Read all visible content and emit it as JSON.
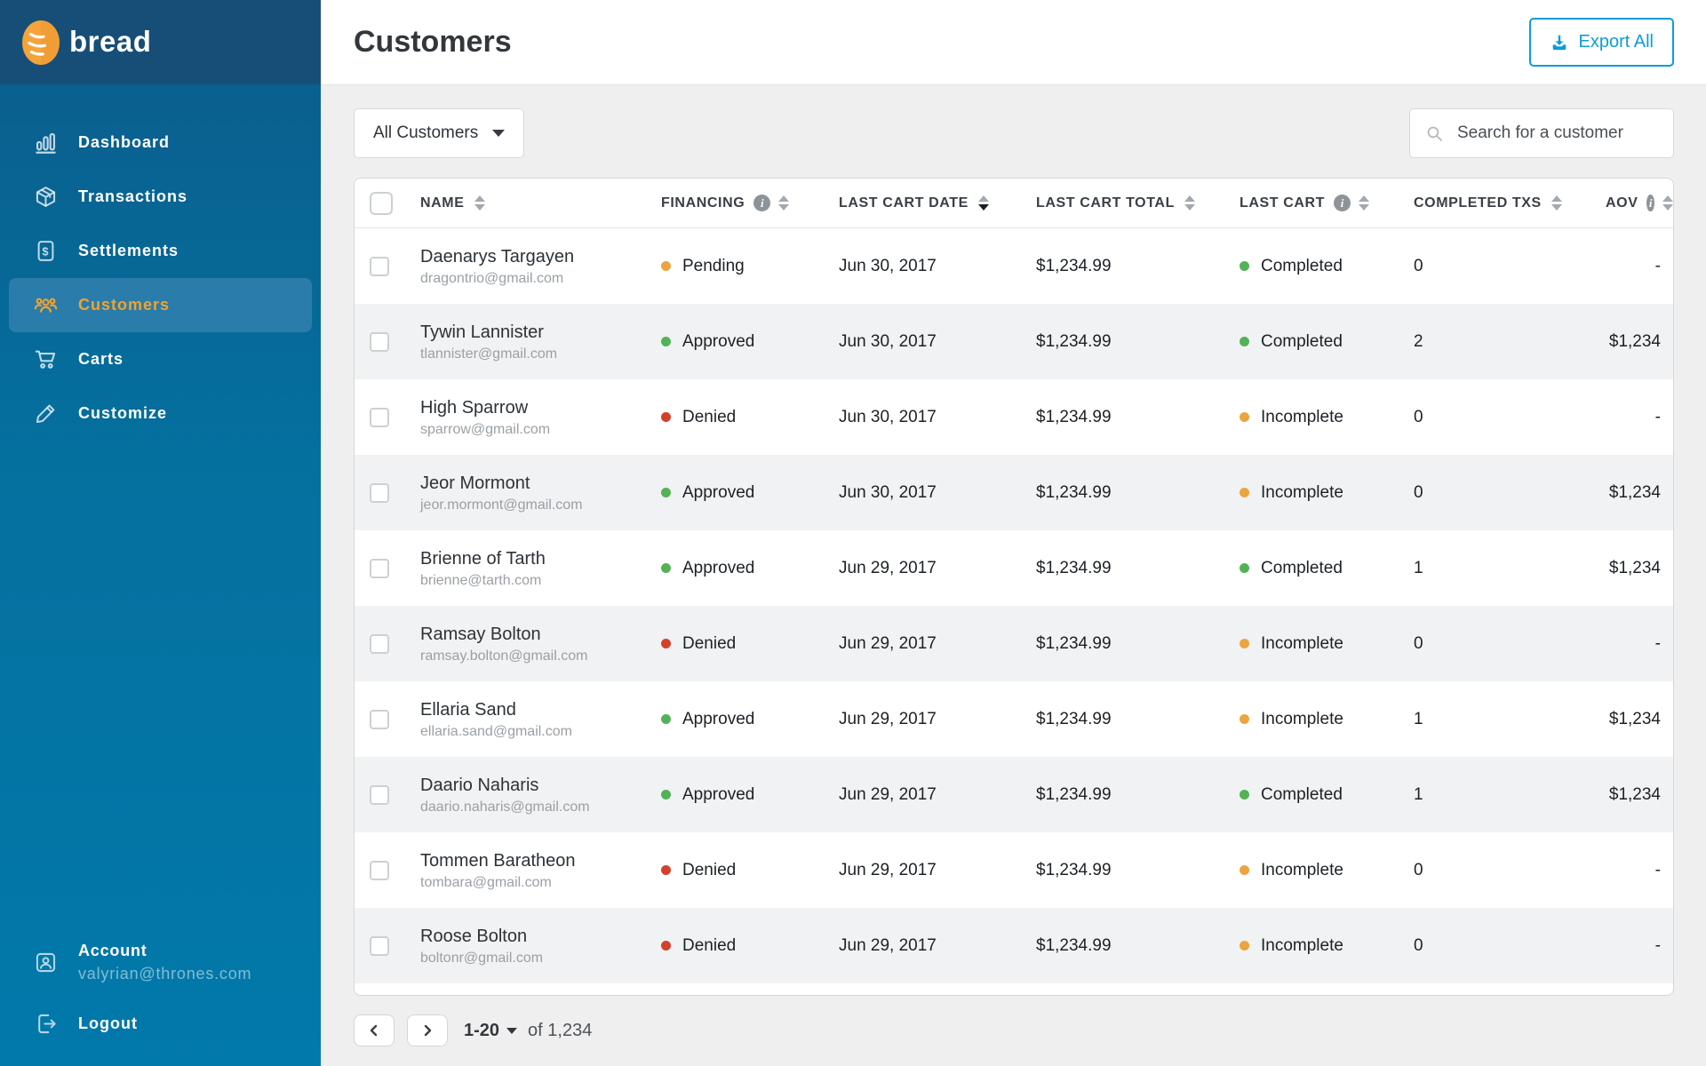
{
  "brand": {
    "name": "bread"
  },
  "sidebar": {
    "items": [
      {
        "id": "dashboard",
        "label": "Dashboard",
        "icon": "dashboard",
        "active": false
      },
      {
        "id": "transactions",
        "label": "Transactions",
        "icon": "transactions",
        "active": false
      },
      {
        "id": "settlements",
        "label": "Settlements",
        "icon": "settlements",
        "active": false
      },
      {
        "id": "customers",
        "label": "Customers",
        "icon": "customers",
        "active": true
      },
      {
        "id": "carts",
        "label": "Carts",
        "icon": "carts",
        "active": false
      },
      {
        "id": "customize",
        "label": "Customize",
        "icon": "customize",
        "active": false
      }
    ],
    "account": {
      "label": "Account",
      "email": "valyrian@thrones.com"
    },
    "logout_label": "Logout"
  },
  "header": {
    "title": "Customers",
    "export_label": "Export All"
  },
  "toolbar": {
    "filter_value": "All Customers",
    "search_placeholder": "Search for a customer"
  },
  "table": {
    "columns": [
      {
        "id": "name",
        "label": "NAME",
        "info": false,
        "sort": "none"
      },
      {
        "id": "financing",
        "label": "FINANCING",
        "info": true,
        "sort": "none"
      },
      {
        "id": "last-cart-date",
        "label": "LAST CART DATE",
        "info": false,
        "sort": "desc"
      },
      {
        "id": "last-cart-total",
        "label": "LAST CART TOTAL",
        "info": false,
        "sort": "none"
      },
      {
        "id": "last-cart",
        "label": "LAST CART",
        "info": true,
        "sort": "none"
      },
      {
        "id": "completed-txs",
        "label": "COMPLETED TXS",
        "info": false,
        "sort": "none"
      },
      {
        "id": "aov",
        "label": "AOV",
        "info": true,
        "sort": "none"
      }
    ],
    "rows": [
      {
        "name": "Daenarys Targayen",
        "email": "dragontrio@gmail.com",
        "financing": {
          "label": "Pending",
          "status": "pending"
        },
        "last_cart_date": "Jun 30, 2017",
        "last_cart_total": "$1,234.99",
        "last_cart": {
          "label": "Completed",
          "status": "completed"
        },
        "completed_txs": "0",
        "aov": "-"
      },
      {
        "name": "Tywin Lannister",
        "email": "tlannister@gmail.com",
        "financing": {
          "label": "Approved",
          "status": "approved"
        },
        "last_cart_date": "Jun 30, 2017",
        "last_cart_total": "$1,234.99",
        "last_cart": {
          "label": "Completed",
          "status": "completed"
        },
        "completed_txs": "2",
        "aov": "$1,234"
      },
      {
        "name": "High Sparrow",
        "email": "sparrow@gmail.com",
        "financing": {
          "label": "Denied",
          "status": "denied"
        },
        "last_cart_date": "Jun 30, 2017",
        "last_cart_total": "$1,234.99",
        "last_cart": {
          "label": "Incomplete",
          "status": "incomplete"
        },
        "completed_txs": "0",
        "aov": "-"
      },
      {
        "name": "Jeor Mormont",
        "email": "jeor.mormont@gmail.com",
        "financing": {
          "label": "Approved",
          "status": "approved"
        },
        "last_cart_date": "Jun 30, 2017",
        "last_cart_total": "$1,234.99",
        "last_cart": {
          "label": "Incomplete",
          "status": "incomplete"
        },
        "completed_txs": "0",
        "aov": "$1,234"
      },
      {
        "name": "Brienne of Tarth",
        "email": "brienne@tarth.com",
        "financing": {
          "label": "Approved",
          "status": "approved"
        },
        "last_cart_date": "Jun 29, 2017",
        "last_cart_total": "$1,234.99",
        "last_cart": {
          "label": "Completed",
          "status": "completed"
        },
        "completed_txs": "1",
        "aov": "$1,234"
      },
      {
        "name": "Ramsay Bolton",
        "email": "ramsay.bolton@gmail.com",
        "financing": {
          "label": "Denied",
          "status": "denied"
        },
        "last_cart_date": "Jun 29, 2017",
        "last_cart_total": "$1,234.99",
        "last_cart": {
          "label": "Incomplete",
          "status": "incomplete"
        },
        "completed_txs": "0",
        "aov": "-"
      },
      {
        "name": "Ellaria Sand",
        "email": "ellaria.sand@gmail.com",
        "financing": {
          "label": "Approved",
          "status": "approved"
        },
        "last_cart_date": "Jun 29, 2017",
        "last_cart_total": "$1,234.99",
        "last_cart": {
          "label": "Incomplete",
          "status": "incomplete"
        },
        "completed_txs": "1",
        "aov": "$1,234"
      },
      {
        "name": "Daario Naharis",
        "email": "daario.naharis@gmail.com",
        "financing": {
          "label": "Approved",
          "status": "approved"
        },
        "last_cart_date": "Jun 29, 2017",
        "last_cart_total": "$1,234.99",
        "last_cart": {
          "label": "Completed",
          "status": "completed"
        },
        "completed_txs": "1",
        "aov": "$1,234"
      },
      {
        "name": "Tommen Baratheon",
        "email": "tombara@gmail.com",
        "financing": {
          "label": "Denied",
          "status": "denied"
        },
        "last_cart_date": "Jun 29, 2017",
        "last_cart_total": "$1,234.99",
        "last_cart": {
          "label": "Incomplete",
          "status": "incomplete"
        },
        "completed_txs": "0",
        "aov": "-"
      },
      {
        "name": "Roose Bolton",
        "email": "boltonr@gmail.com",
        "financing": {
          "label": "Denied",
          "status": "denied"
        },
        "last_cart_date": "Jun 29, 2017",
        "last_cart_total": "$1,234.99",
        "last_cart": {
          "label": "Incomplete",
          "status": "incomplete"
        },
        "completed_txs": "0",
        "aov": "-"
      }
    ]
  },
  "pagination": {
    "range": "1-20",
    "of_label": "of 1,234"
  },
  "colors": {
    "accent_orange": "#f3a22c",
    "export_blue": "#0c9cda",
    "status": {
      "pending": "#eca43e",
      "approved": "#53b257",
      "denied": "#d5402b",
      "completed": "#53b257",
      "incomplete": "#eca43e"
    }
  }
}
